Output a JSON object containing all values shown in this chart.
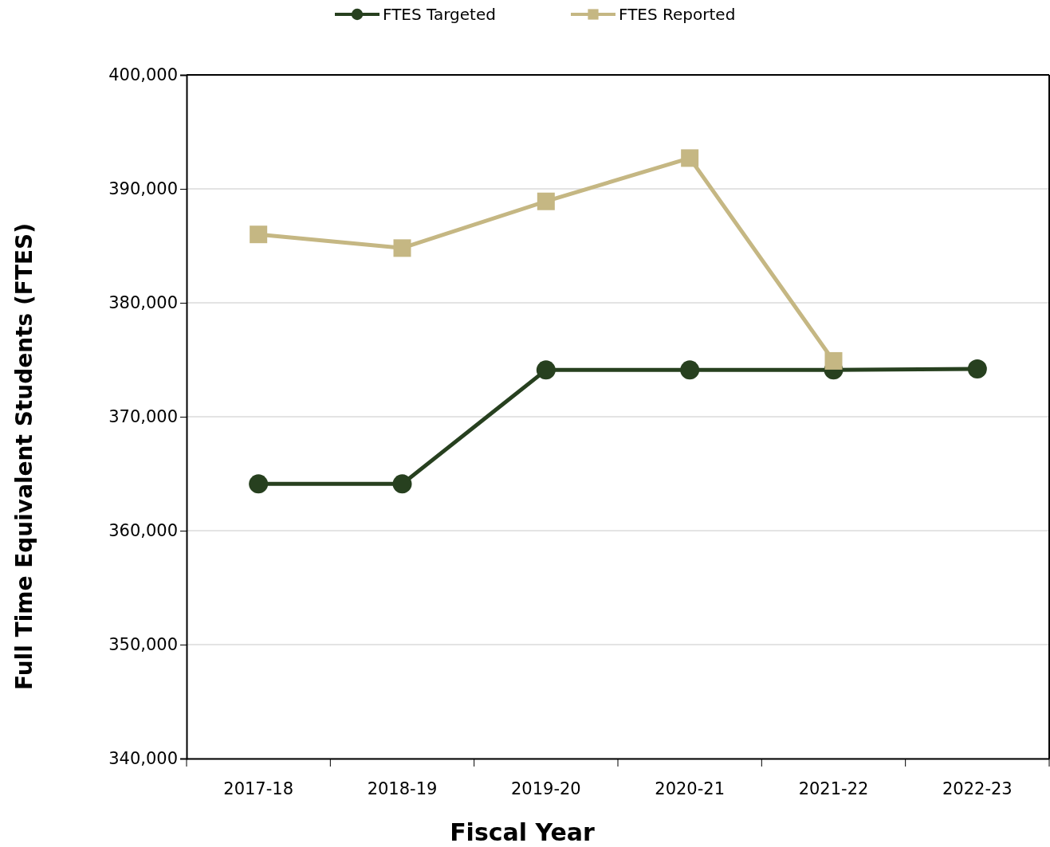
{
  "chart_data": {
    "type": "line",
    "xlabel": "Fiscal Year",
    "ylabel": "Full Time Equivalent Students (FTES)",
    "categories": [
      "2017-18",
      "2018-19",
      "2019-20",
      "2020-21",
      "2021-22",
      "2022-23"
    ],
    "series": [
      {
        "name": "FTES Targeted",
        "color": "#27401f",
        "marker": "circle",
        "values": [
          364100,
          364100,
          374100,
          374100,
          374100,
          374200
        ]
      },
      {
        "name": "FTES Reported",
        "color": "#c5b783",
        "marker": "square",
        "values": [
          386000,
          384800,
          388900,
          392700,
          374900,
          null
        ]
      }
    ],
    "ylim": [
      340000,
      400000
    ],
    "yticks": [
      {
        "value": 340000,
        "label": "340,000"
      },
      {
        "value": 350000,
        "label": "350,000"
      },
      {
        "value": 360000,
        "label": "360,000"
      },
      {
        "value": 370000,
        "label": "370,000"
      },
      {
        "value": 380000,
        "label": "380,000"
      },
      {
        "value": 390000,
        "label": "390,000"
      },
      {
        "value": 400000,
        "label": "400,000"
      }
    ],
    "grid": "y",
    "legend": "top",
    "line_style": "solid"
  }
}
